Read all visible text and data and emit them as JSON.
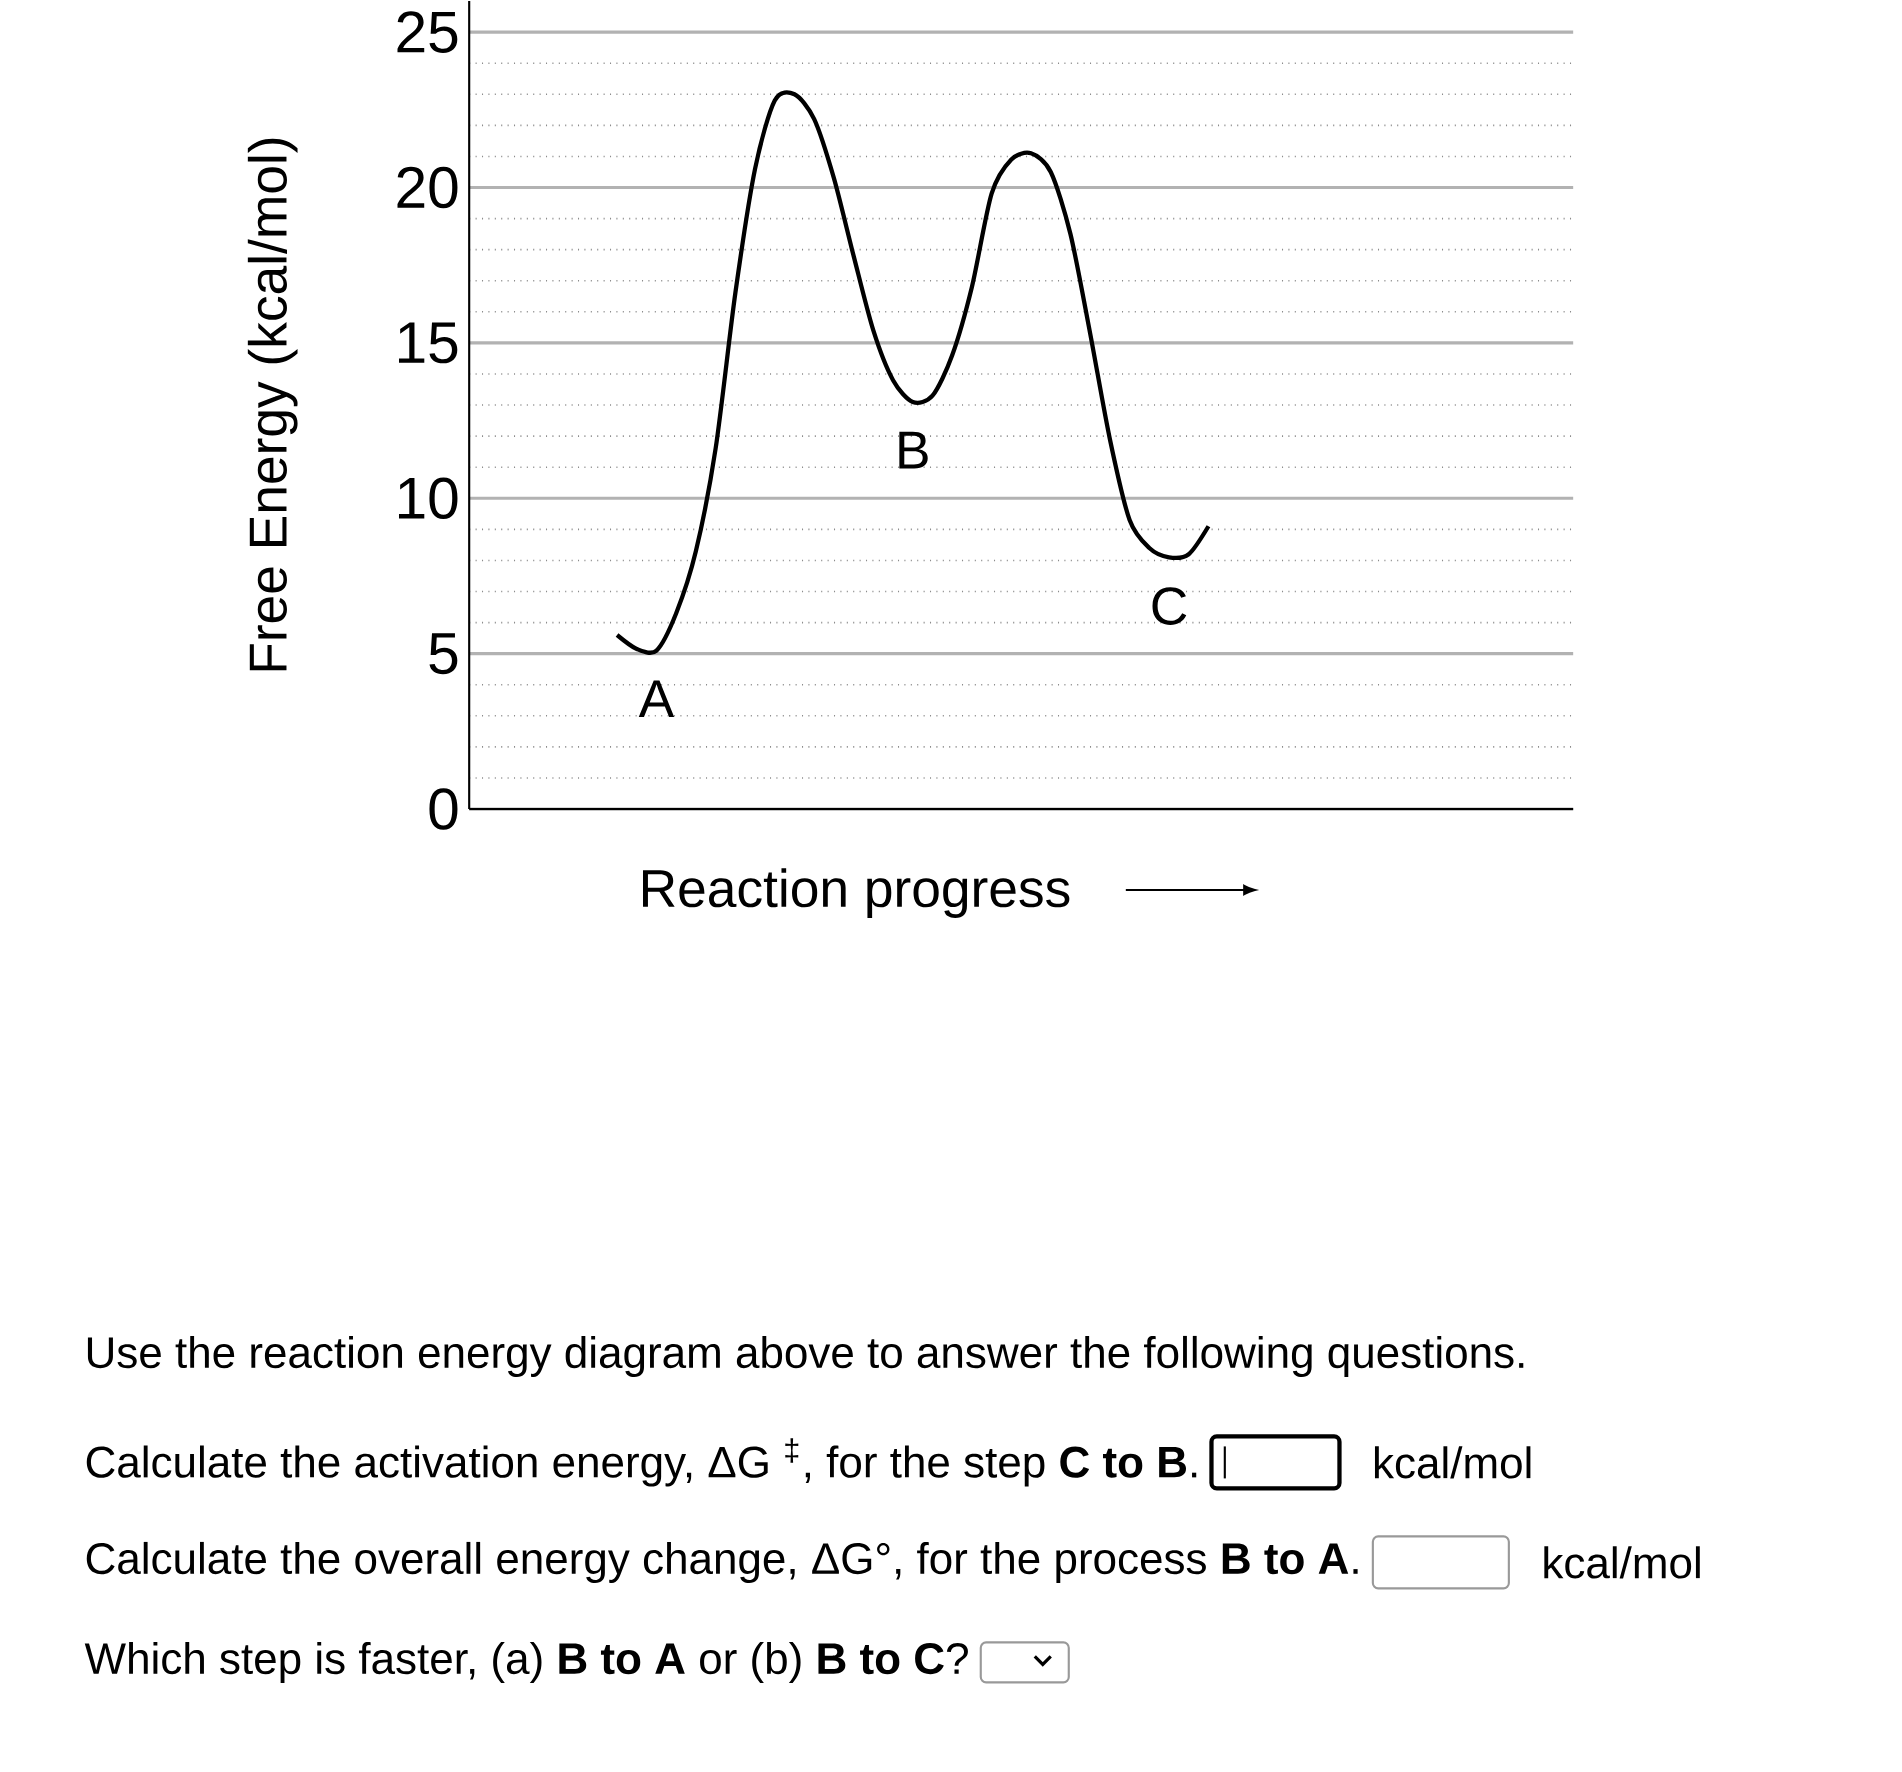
{
  "chart_data": {
    "type": "line",
    "ylabel": "Free Energy (kcal/mol)",
    "xlabel": "Reaction progress",
    "categories": [
      null,
      null,
      null,
      null,
      null,
      null,
      null,
      null,
      null,
      null,
      null,
      null,
      null,
      null,
      null,
      null,
      null,
      null,
      null,
      null,
      null,
      null,
      null,
      null,
      null,
      null,
      null,
      null,
      null,
      null,
      null,
      null,
      null,
      null,
      null,
      null,
      null,
      null,
      null,
      null,
      null,
      null,
      null,
      null,
      null,
      null,
      null,
      null,
      null,
      null,
      null,
      null,
      null,
      null,
      null,
      null
    ],
    "series": [
      {
        "color": "#000000",
        "values": [
          null,
          null,
          null,
          null,
          null,
          null,
          null,
          5.6,
          5.15,
          5.1,
          6.3,
          8.3,
          11.6,
          16.6,
          20.6,
          22.8,
          23.0,
          22.2,
          20.3,
          17.8,
          15.4,
          13.8,
          13.1,
          13.3,
          14.6,
          16.8,
          19.8,
          20.9,
          21.1,
          20.5,
          18.5,
          15.3,
          11.9,
          9.3,
          8.4,
          8.1,
          8.2,
          9.1,
          null,
          null,
          null,
          null,
          null,
          null,
          null,
          null,
          null,
          null,
          null,
          null,
          null,
          null,
          null,
          null,
          null,
          null
        ]
      }
    ],
    "ylim": [
      0,
      26
    ],
    "yticks": [
      0,
      5,
      10,
      15,
      20,
      25
    ],
    "grid": "y",
    "marker": "none",
    "line_style": "solid",
    "tick_labels": "y",
    "annotations": [
      {
        "text": "A",
        "y": 5.1
      },
      {
        "text": "B",
        "y": 13.1
      },
      {
        "text": "C",
        "y": 8.1
      },
      "Use the reaction energy diagram above to answer the following questions.",
      "Calculate the activation energy, ΔG $^{‡}$, for the step **C to B**.",
      "kcal/mol",
      "Calculate the overall energy change, ΔG°, for the process **B to A**.",
      "kcal/mol",
      "Which step is faster, (a) **B to A** or (b) **B to C**?"
    ]
  }
}
